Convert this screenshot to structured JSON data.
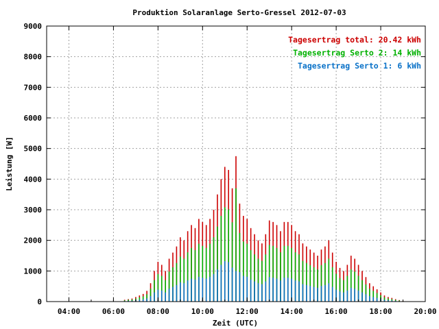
{
  "colors": {
    "total": "#cc0000",
    "serto2": "#00b000",
    "serto1": "#0a72c8",
    "grid": "#a0a0a0"
  },
  "chart_data": {
    "type": "bar",
    "title": "Produktion Solaranlage Serto-Gressel 2012-07-03",
    "xlabel": "Zeit (UTC)",
    "ylabel": "Leistung [W]",
    "xlim": [
      "03:00",
      "20:00"
    ],
    "ylim": [
      0,
      9000
    ],
    "x_ticks": [
      "04:00",
      "06:00",
      "08:00",
      "10:00",
      "12:00",
      "14:00",
      "16:00",
      "18:00",
      "20:00"
    ],
    "y_ticks": [
      "0",
      "1000",
      "2000",
      "3000",
      "4000",
      "5000",
      "6000",
      "7000",
      "8000",
      "9000"
    ],
    "grid": true,
    "legend_position": "top-right",
    "legend": [
      {
        "series": "total",
        "text": "Tagesertrag total: 20.42 kWh"
      },
      {
        "series": "serto2",
        "text": "Tagesertrag Serto 2: 14 kWh"
      },
      {
        "series": "serto1",
        "text": "Tagesertrag Serto 1: 6 kWh"
      }
    ],
    "x": [
      "06:30",
      "06:40",
      "06:50",
      "07:00",
      "07:10",
      "07:20",
      "07:30",
      "07:40",
      "07:50",
      "08:00",
      "08:10",
      "08:20",
      "08:30",
      "08:40",
      "08:50",
      "09:00",
      "09:10",
      "09:20",
      "09:30",
      "09:40",
      "09:50",
      "10:00",
      "10:10",
      "10:20",
      "10:30",
      "10:40",
      "10:50",
      "11:00",
      "11:10",
      "11:20",
      "11:30",
      "11:40",
      "11:50",
      "12:00",
      "12:10",
      "12:20",
      "12:30",
      "12:40",
      "12:50",
      "13:00",
      "13:10",
      "13:20",
      "13:30",
      "13:40",
      "13:50",
      "14:00",
      "14:10",
      "14:20",
      "14:30",
      "14:40",
      "14:50",
      "15:00",
      "15:10",
      "15:20",
      "15:30",
      "15:40",
      "15:50",
      "16:00",
      "16:10",
      "16:20",
      "16:30",
      "16:40",
      "16:50",
      "17:00",
      "17:10",
      "17:20",
      "17:30",
      "17:40",
      "17:50",
      "18:00",
      "18:10",
      "18:20",
      "18:30",
      "18:40",
      "18:50",
      "19:00",
      "19:10"
    ],
    "series": [
      {
        "name": "total",
        "values": [
          60,
          80,
          100,
          150,
          200,
          250,
          350,
          600,
          1000,
          1300,
          1200,
          1000,
          1400,
          1600,
          1800,
          2100,
          2000,
          2300,
          2500,
          2400,
          2700,
          2600,
          2500,
          2700,
          3000,
          3500,
          4000,
          4400,
          4300,
          3700,
          4750,
          3200,
          2800,
          2700,
          2400,
          2200,
          2000,
          1900,
          2200,
          2650,
          2600,
          2500,
          2300,
          2600,
          2600,
          2500,
          2300,
          2200,
          1900,
          1800,
          1700,
          1600,
          1500,
          1700,
          1800,
          2000,
          1600,
          1300,
          1100,
          1000,
          1200,
          1500,
          1400,
          1200,
          1000,
          800,
          600,
          500,
          400,
          300,
          200,
          150,
          120,
          80,
          50,
          20,
          10
        ]
      },
      {
        "name": "serto2",
        "values": [
          40,
          60,
          70,
          100,
          140,
          170,
          240,
          420,
          700,
          900,
          840,
          700,
          980,
          1120,
          1260,
          1470,
          1400,
          1610,
          1750,
          1680,
          1890,
          1820,
          1750,
          1890,
          2100,
          2450,
          2800,
          3080,
          3010,
          2590,
          3700,
          2240,
          1960,
          1890,
          1680,
          1540,
          1400,
          1330,
          1540,
          1850,
          1820,
          1750,
          1610,
          1820,
          1820,
          1750,
          1610,
          1540,
          1330,
          1260,
          1190,
          1120,
          1050,
          1190,
          1260,
          1400,
          1120,
          910,
          770,
          700,
          840,
          1050,
          980,
          840,
          700,
          560,
          420,
          350,
          280,
          210,
          140,
          100,
          80,
          55,
          35,
          14,
          7
        ]
      },
      {
        "name": "serto1",
        "values": [
          18,
          24,
          30,
          45,
          60,
          75,
          105,
          180,
          300,
          390,
          360,
          300,
          420,
          480,
          540,
          630,
          600,
          690,
          750,
          720,
          810,
          780,
          750,
          810,
          900,
          1050,
          1200,
          1320,
          1290,
          1110,
          1000,
          960,
          840,
          810,
          720,
          660,
          600,
          570,
          660,
          800,
          780,
          750,
          690,
          780,
          780,
          750,
          690,
          660,
          570,
          540,
          510,
          480,
          450,
          510,
          540,
          600,
          480,
          390,
          330,
          300,
          360,
          450,
          420,
          360,
          300,
          240,
          180,
          150,
          120,
          90,
          60,
          45,
          36,
          24,
          15,
          6,
          3
        ]
      }
    ]
  }
}
